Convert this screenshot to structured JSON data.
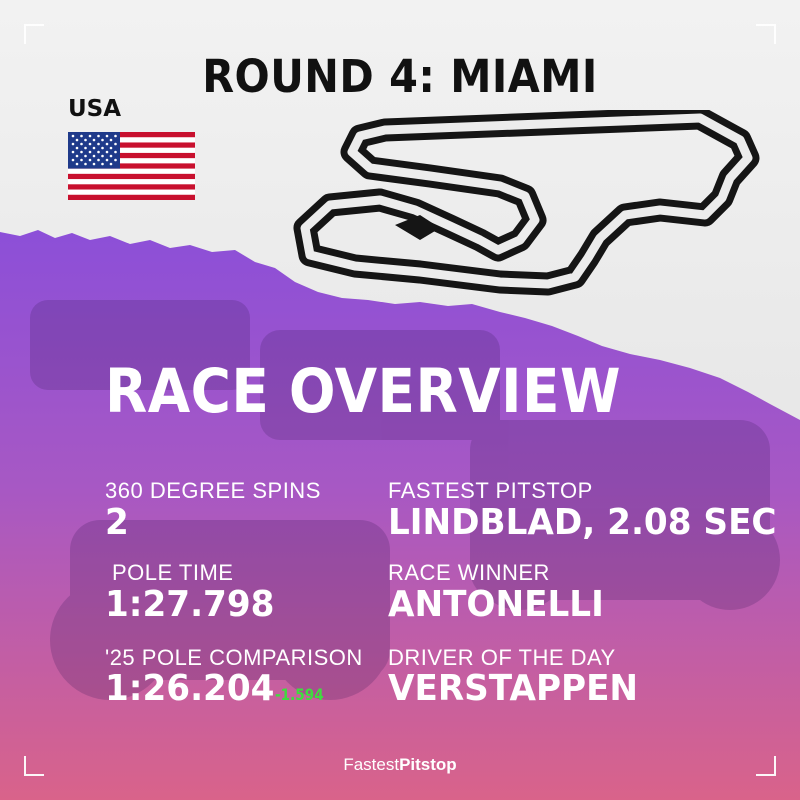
{
  "header": {
    "title": "ROUND 4: MIAMI",
    "country": "USA"
  },
  "section": {
    "title": "RACE OVERVIEW"
  },
  "stats": {
    "spins": {
      "label": "360 DEGREE SPINS",
      "value": "2"
    },
    "fastest_pitstop": {
      "label": "FASTEST PITSTOP",
      "value": "LINDBLAD, 2.08 SEC"
    },
    "pole_time": {
      "label": "POLE TIME",
      "value": "1:27.798"
    },
    "race_winner": {
      "label": "RACE WINNER",
      "value": "ANTONELLI"
    },
    "pole_comparison": {
      "label": "'25 POLE COMPARISON",
      "value": "1:26.204",
      "delta": "-1.594"
    },
    "driver_of_day": {
      "label": "DRIVER OF THE DAY",
      "value": "VERSTAPPEN"
    }
  },
  "footer": {
    "brand_part1": "Fastest",
    "brand_part2": "Pitstop"
  },
  "colors": {
    "purple": "#9a5ad6",
    "pink": "#d65f8c",
    "delta_green": "#3fdc3f",
    "paper": "#ececec",
    "ink": "#111111"
  },
  "icons": {
    "flag": "usa-flag-icon",
    "circuit": "miami-circuit-map"
  }
}
